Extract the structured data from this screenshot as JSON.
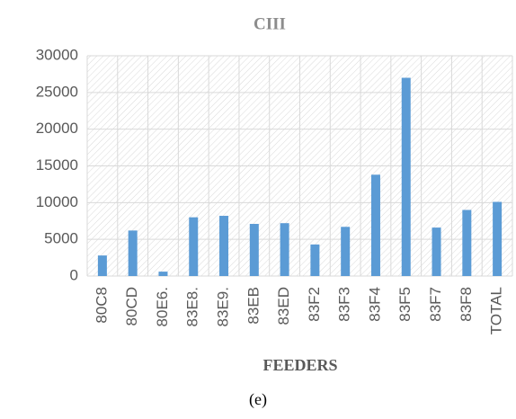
{
  "chart_data": {
    "type": "bar",
    "title": "CIII",
    "x_label": "FEEDERS",
    "caption": "(e)",
    "categories": [
      "80C8",
      "80CD",
      "80E6.",
      "83E8.",
      "83E9.",
      "83EB",
      "83ED",
      "83F2",
      "83F3",
      "83F4",
      "83F5",
      "83F7",
      "83F8",
      "TOTAL"
    ],
    "values": [
      2800,
      6200,
      600,
      8000,
      8200,
      7100,
      7200,
      4300,
      6700,
      13800,
      27000,
      6600,
      9000,
      10100
    ],
    "color": "#5b9bd5",
    "ylim": [
      0,
      30000
    ],
    "yticks": [
      0,
      5000,
      10000,
      15000,
      20000,
      25000,
      30000
    ],
    "grid": true
  }
}
